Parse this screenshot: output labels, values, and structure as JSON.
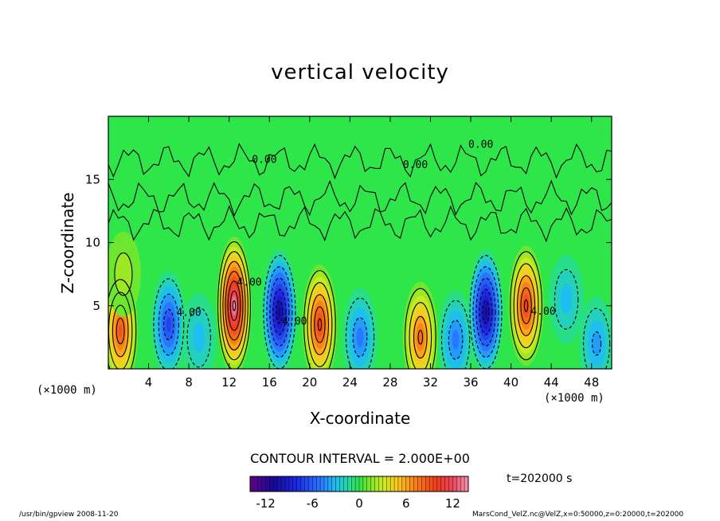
{
  "chart_data": {
    "type": "heatmap",
    "title": "vertical velocity",
    "xlabel": "X-coordinate",
    "ylabel": "Z-coordinate",
    "x_unit_label": "(×1000 m)",
    "x_range": [
      0,
      50
    ],
    "y_range": [
      0,
      20
    ],
    "x_ticks": [
      4,
      8,
      12,
      16,
      20,
      24,
      28,
      32,
      36,
      40,
      44,
      48
    ],
    "y_ticks": [
      5,
      10,
      15
    ],
    "contour_interval_label": "CONTOUR INTERVAL = 2.000E+00",
    "contour_labels": [
      {
        "text": "0.00",
        "x": 37,
        "y": 17.5
      },
      {
        "text": "0.00",
        "x": 30.5,
        "y": 15.9
      },
      {
        "text": "0.00",
        "x": 15.5,
        "y": 16.3
      },
      {
        "text": "4.00",
        "x": 14.0,
        "y": 6.6
      },
      {
        "text": "4.00",
        "x": 8.0,
        "y": 4.2
      },
      {
        "text": "4.00",
        "x": 18.5,
        "y": 3.5
      },
      {
        "text": "4.00",
        "x": 43.2,
        "y": 4.3
      }
    ],
    "cells": [
      {
        "x": 1.2,
        "y": 3.0,
        "amp": 9
      },
      {
        "x": 6.0,
        "y": 3.5,
        "amp": -7
      },
      {
        "x": 9.0,
        "y": 2.5,
        "amp": -3
      },
      {
        "x": 12.5,
        "y": 5.0,
        "amp": 14
      },
      {
        "x": 17.0,
        "y": 4.5,
        "amp": -11
      },
      {
        "x": 21.0,
        "y": 3.5,
        "amp": 10
      },
      {
        "x": 25.0,
        "y": 2.5,
        "amp": -5
      },
      {
        "x": 31.0,
        "y": 2.5,
        "amp": 8
      },
      {
        "x": 34.5,
        "y": 2.3,
        "amp": -5
      },
      {
        "x": 37.5,
        "y": 4.5,
        "amp": -11
      },
      {
        "x": 41.5,
        "y": 5.0,
        "amp": 10
      },
      {
        "x": 45.5,
        "y": 5.5,
        "amp": -3
      },
      {
        "x": 48.5,
        "y": 2.0,
        "amp": -4
      },
      {
        "x": 1.5,
        "y": 7.5,
        "amp": 2
      }
    ],
    "colorbar": {
      "ticks": [
        -12,
        -6,
        0,
        6,
        12
      ],
      "range": [
        -14,
        14
      ]
    },
    "time_label": "t=202000 s",
    "colors": {
      "background_green": "#2ee54a",
      "contour_line": "#000000"
    }
  },
  "footer": {
    "left": "/usr/bin/gpview   2008-11-20",
    "right": "MarsCond_VelZ.nc@VelZ,x=0:50000,z=0:20000,t=202000"
  }
}
